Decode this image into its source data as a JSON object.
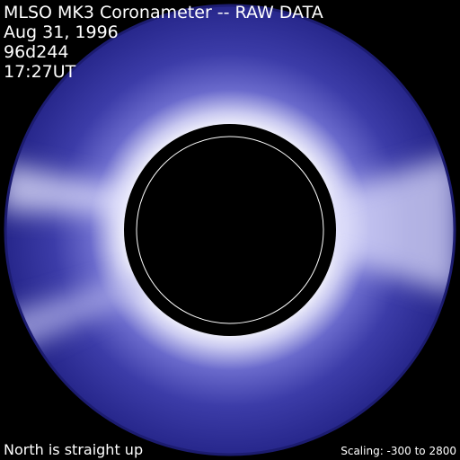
{
  "header": {
    "title": "MLSO MK3 Coronameter -- RAW DATA",
    "date": "Aug 31, 1996",
    "day_code": "96d244",
    "time": "17:27UT"
  },
  "footer": {
    "orientation": "North is straight up",
    "scaling": "Scaling: -300 to 2800"
  }
}
